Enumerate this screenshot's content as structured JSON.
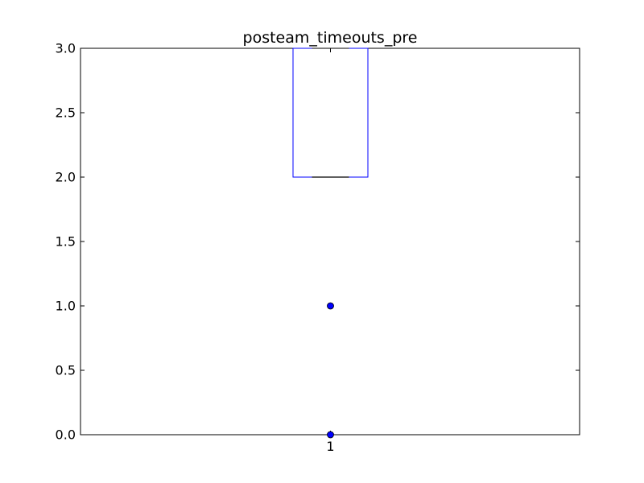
{
  "chart_data": {
    "type": "box",
    "title": "posteam_timeouts_pre",
    "xlabel": "",
    "ylabel": "",
    "categories": [
      "1"
    ],
    "ylim": [
      0.0,
      3.0
    ],
    "yticks": [
      "0.0",
      "0.5",
      "1.0",
      "1.5",
      "2.0",
      "2.5",
      "3.0"
    ],
    "boxes": [
      {
        "category": "1",
        "q1": 2.0,
        "median": 2.0,
        "q3": 3.0,
        "whisker_low": 2.0,
        "whisker_high": 3.0,
        "fliers": [
          1.0,
          0.0
        ]
      }
    ],
    "grid": false,
    "colors": {
      "box": "#0000ff",
      "median": "#000000",
      "flier": "#0000ff"
    }
  }
}
